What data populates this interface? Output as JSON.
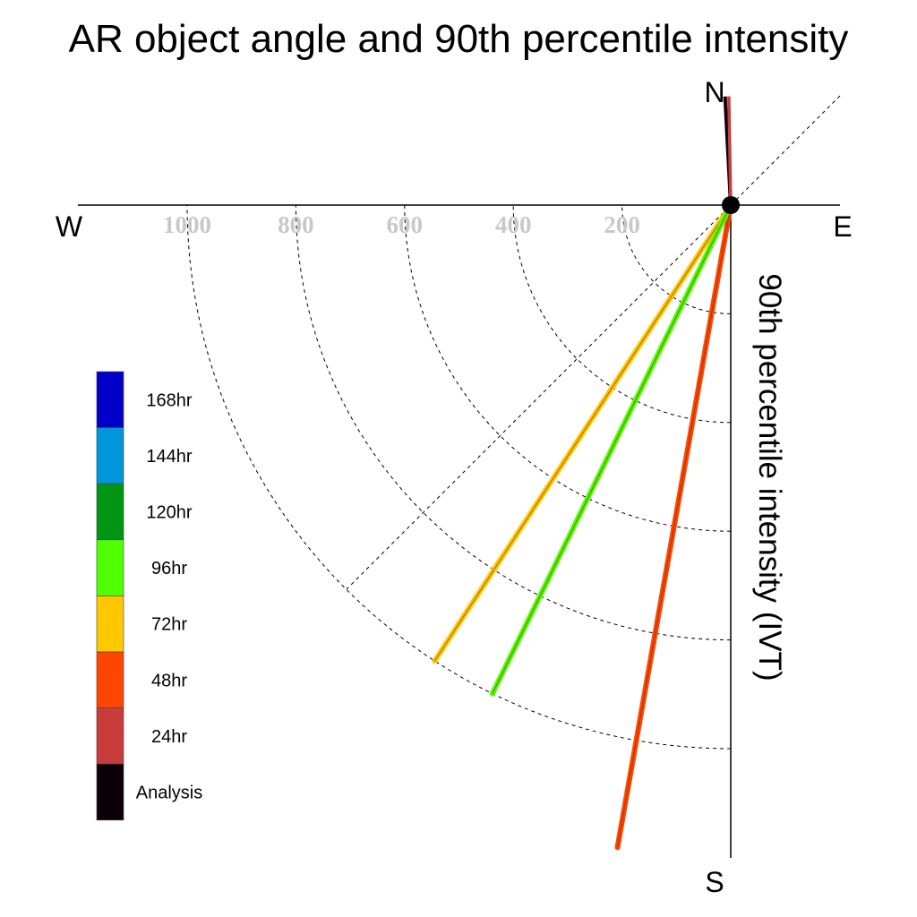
{
  "chart_data": {
    "type": "polar-line",
    "title": "AR object angle and 90th percentile intensity",
    "axis_label": "90th percentile intensity (IVT)",
    "compass": {
      "north": "N",
      "south": "S",
      "east": "E",
      "west": "W"
    },
    "radial_ticks": [
      200,
      400,
      600,
      800,
      1000
    ],
    "radial_max": 1200,
    "grid": true,
    "legend_position": "left",
    "legend": [
      {
        "label": "168hr",
        "color": "#0000c8"
      },
      {
        "label": "144hr",
        "color": "#0096dc"
      },
      {
        "label": "120hr",
        "color": "#009614"
      },
      {
        "label": "96hr",
        "color": "#50ff00"
      },
      {
        "label": "72hr",
        "color": "#ffc800"
      },
      {
        "label": "48hr",
        "color": "#ff4600"
      },
      {
        "label": "24hr",
        "color": "#c83c3c"
      },
      {
        "label": "Analysis",
        "color": "#0a0008"
      }
    ],
    "series": [
      {
        "name": "Analysis",
        "angle_deg": -3,
        "intensity": 200,
        "color": "#0a0008"
      },
      {
        "name": "24hr",
        "angle_deg": -1,
        "intensity": 200,
        "color": "#c83c3c"
      },
      {
        "name": "48hr",
        "angle_deg": 190,
        "intensity": 1200,
        "color": "#ff4600"
      },
      {
        "name": "72hr",
        "angle_deg": 213,
        "intensity": 1000,
        "color": "#ffc800"
      },
      {
        "name": "96hr",
        "angle_deg": 206,
        "intensity": 1000,
        "color": "#50ff00"
      }
    ]
  }
}
